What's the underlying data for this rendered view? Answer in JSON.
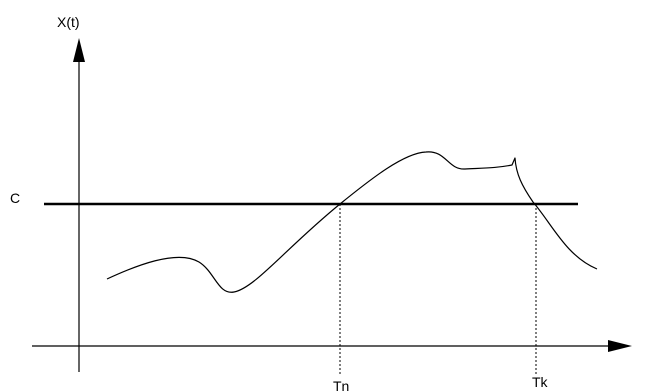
{
  "y_axis_label": "X(t)",
  "level_label": "C",
  "crossing_labels": {
    "first": "Tn",
    "second": "Tk"
  },
  "colors": {
    "ink": "#000000",
    "background": "#ffffff"
  }
}
